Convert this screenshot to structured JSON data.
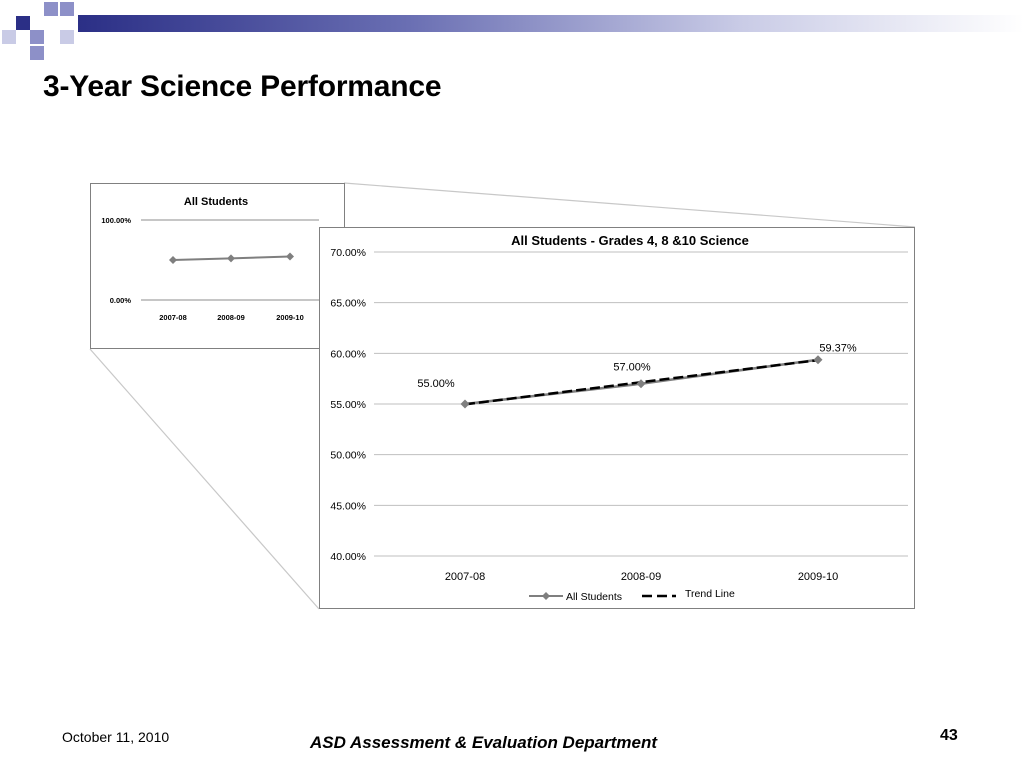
{
  "slide": {
    "title": "3-Year Science Performance",
    "footer_date": "October 11, 2010",
    "footer_center": "ASD Assessment & Evaluation Department",
    "page_number": "43"
  },
  "colors": {
    "band_dark": "#2b2f86",
    "band_light": "#c9cbe6",
    "series": "#7f7f7f",
    "trend": "#000000",
    "grid": "#bfbfbf"
  },
  "chart_data": [
    {
      "type": "line",
      "title": "All Students",
      "categories": [
        "2007-08",
        "2008-09",
        "2009-10"
      ],
      "series": [
        {
          "values": [
            55.0,
            57.0,
            59.37
          ]
        }
      ],
      "y_ticks": [
        "0.00%",
        "100.00%"
      ],
      "ylim": [
        0,
        100
      ],
      "grid": true
    },
    {
      "type": "line",
      "title": "All Students - Grades 4, 8 &10 Science",
      "categories": [
        "2007-08",
        "2008-09",
        "2009-10"
      ],
      "series": [
        {
          "name": "All Students",
          "values": [
            55.0,
            57.0,
            59.37
          ],
          "labels": [
            "55.00%",
            "57.00%",
            "59.37%"
          ]
        },
        {
          "name": "Trend Line",
          "values": [
            54.96,
            57.15,
            59.33
          ]
        }
      ],
      "y_ticks": [
        "40.00%",
        "45.00%",
        "50.00%",
        "55.00%",
        "60.00%",
        "65.00%",
        "70.00%"
      ],
      "ylim": [
        40,
        70
      ],
      "grid": true,
      "legend": "bottom"
    }
  ]
}
